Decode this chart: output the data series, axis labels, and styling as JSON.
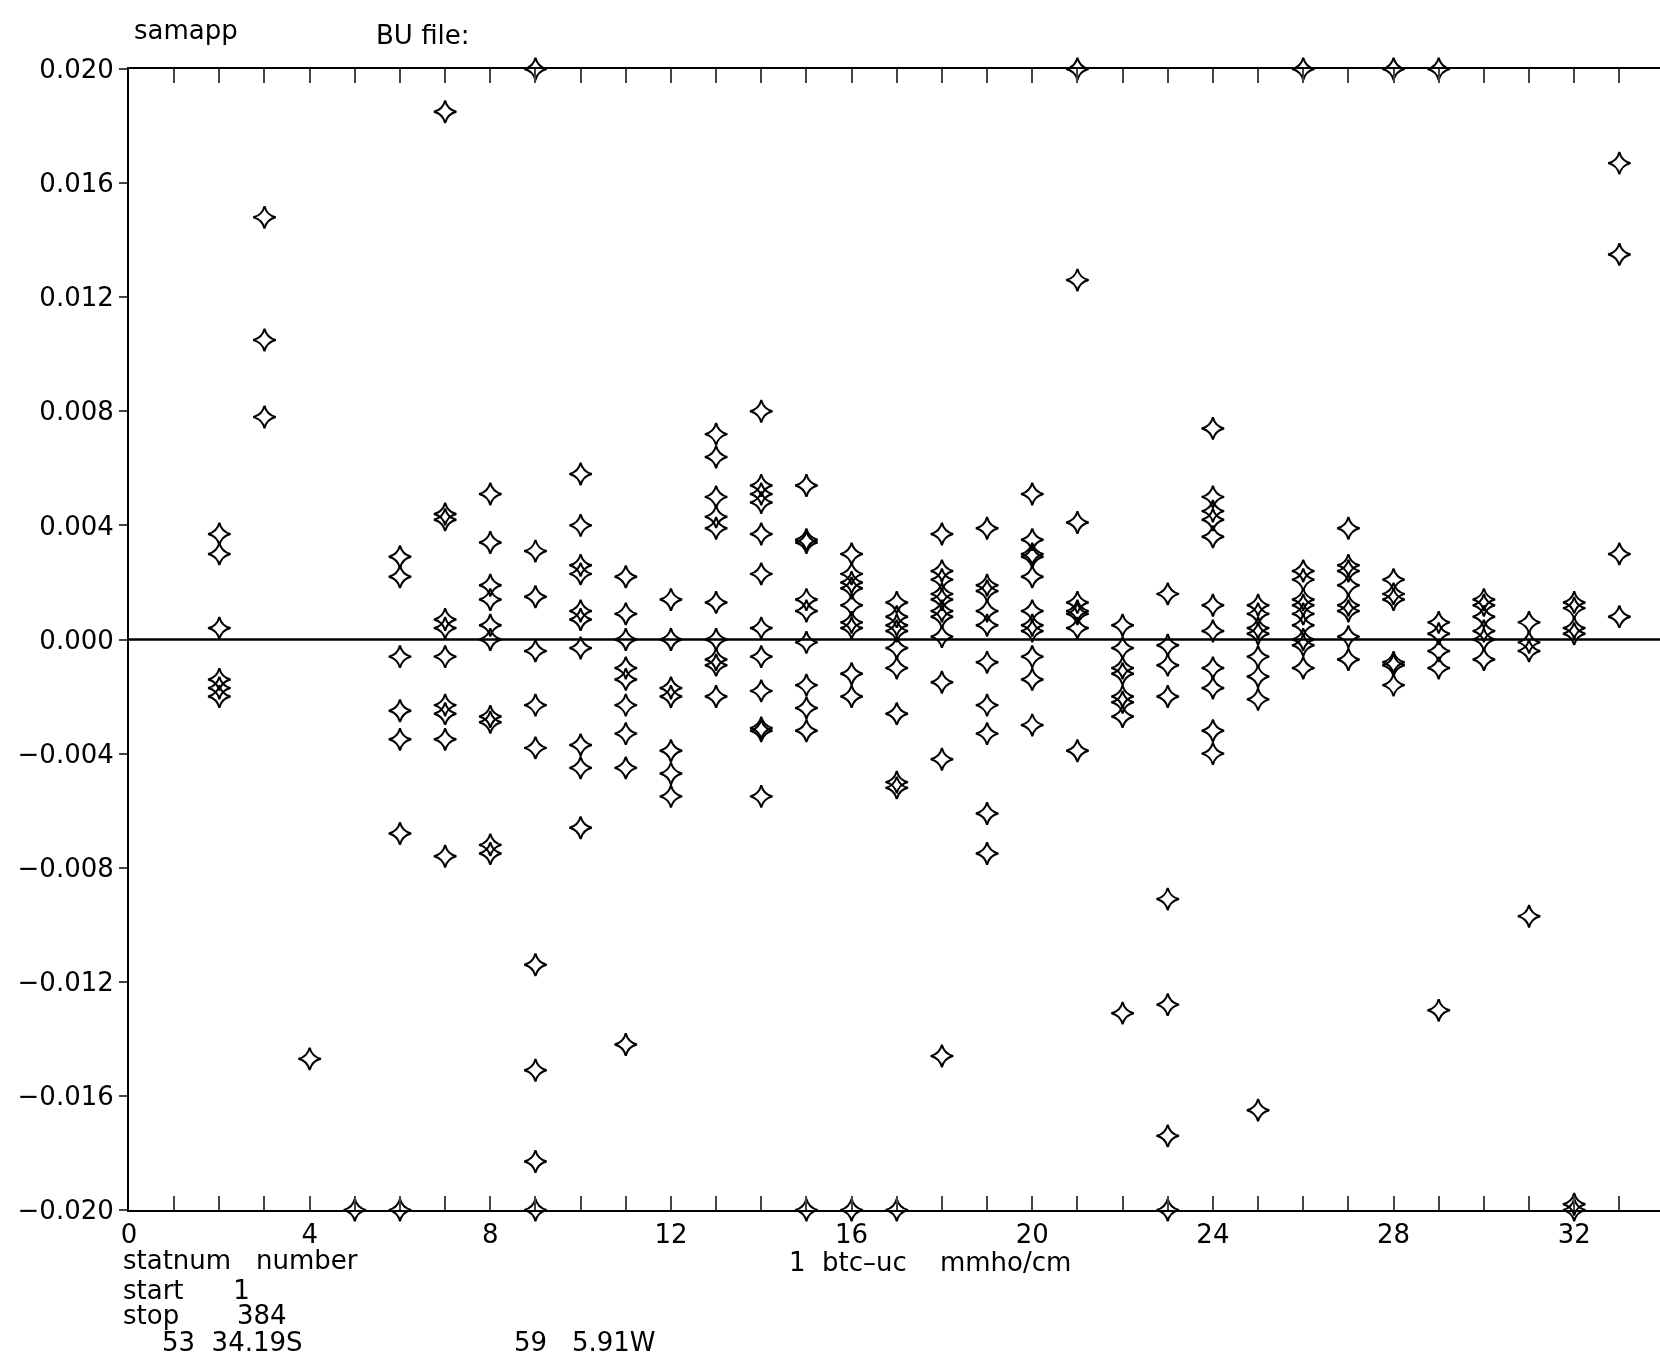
{
  "chart_data": {
    "type": "scatter",
    "xlabel": "statnum   number",
    "annotations": [
      "samapp",
      "BU file:",
      "start      1",
      "stop       384",
      "53  34.19S",
      "59   5.91W",
      "1  btc–uc    mmho/cm"
    ],
    "xlim": [
      0,
      33.9
    ],
    "ylim": [
      -0.02,
      0.02
    ],
    "xticks": [
      0,
      {
        "value": 1,
        "label": null
      },
      {
        "value": 2,
        "label": null
      },
      {
        "value": 3,
        "label": null
      },
      4,
      {
        "value": 5,
        "label": null
      },
      {
        "value": 6,
        "label": null
      },
      {
        "value": 7,
        "label": null
      },
      8,
      {
        "value": 9,
        "label": null
      },
      {
        "value": 10,
        "label": null
      },
      {
        "value": 11,
        "label": null
      },
      12,
      {
        "value": 13,
        "label": null
      },
      {
        "value": 14,
        "label": null
      },
      {
        "value": 15,
        "label": null
      },
      16,
      {
        "value": 17,
        "label": null
      },
      {
        "value": 18,
        "label": null
      },
      {
        "value": 19,
        "label": null
      },
      20,
      {
        "value": 21,
        "label": null
      },
      {
        "value": 22,
        "label": null
      },
      {
        "value": 23,
        "label": null
      },
      24,
      {
        "value": 25,
        "label": null
      },
      {
        "value": 26,
        "label": null
      },
      {
        "value": 27,
        "label": null
      },
      28,
      {
        "value": 29,
        "label": null
      },
      {
        "value": 30,
        "label": null
      },
      {
        "value": 31,
        "label": null
      },
      32,
      {
        "value": 33,
        "label": null
      }
    ],
    "yticks": [
      {
        "value": -0.02,
        "label": "−0.020"
      },
      {
        "value": -0.016,
        "label": "−0.016"
      },
      {
        "value": -0.012,
        "label": "−0.012"
      },
      {
        "value": -0.008,
        "label": "−0.008"
      },
      {
        "value": -0.004,
        "label": "−0.004"
      },
      {
        "value": 0,
        "label": "0.000"
      },
      {
        "value": 0.004,
        "label": "0.004"
      },
      {
        "value": 0.008,
        "label": "0.008"
      },
      {
        "value": 0.012,
        "label": "0.012"
      },
      {
        "value": 0.016,
        "label": "0.016"
      },
      {
        "value": 0.02,
        "label": "0.020"
      }
    ],
    "ref_lines": [
      {
        "axis": "y",
        "value": 0,
        "color": "#000000"
      }
    ],
    "grid": false,
    "marker": "star",
    "series": [
      {
        "color": "#000000",
        "x": [
          2,
          2,
          2,
          2,
          2,
          2,
          3,
          3,
          3,
          4,
          5,
          6,
          6,
          6,
          6,
          6,
          6,
          6,
          7,
          7,
          7,
          7,
          7,
          7,
          7,
          7,
          7,
          7,
          8,
          8,
          8,
          8,
          8,
          8,
          8,
          8,
          8,
          8,
          9,
          9,
          9,
          9,
          9,
          9,
          9,
          9,
          9,
          9,
          10,
          10,
          10,
          10,
          10,
          10,
          10,
          10,
          10,
          10,
          11,
          11,
          11,
          11,
          11,
          11,
          11,
          11,
          11,
          12,
          12,
          12,
          12,
          12,
          12,
          12,
          13,
          13,
          13,
          13,
          13,
          13,
          13,
          13,
          13,
          13,
          14,
          14,
          14,
          14,
          14,
          14,
          14,
          14,
          14,
          14,
          14,
          14,
          15,
          15,
          15,
          15,
          15,
          15,
          15,
          15,
          15,
          15,
          16,
          16,
          16,
          16,
          16,
          16,
          16,
          16,
          16,
          16,
          17,
          17,
          17,
          17,
          17,
          17,
          17,
          17,
          17,
          17,
          18,
          18,
          18,
          18,
          18,
          18,
          18,
          18,
          18,
          18,
          18,
          19,
          19,
          19,
          19,
          19,
          19,
          19,
          19,
          19,
          19,
          20,
          20,
          20,
          20,
          20,
          20,
          20,
          20,
          20,
          20,
          20,
          21,
          21,
          21,
          21,
          21,
          21,
          21,
          21,
          22,
          22,
          22,
          22,
          22,
          22,
          22,
          22,
          23,
          23,
          23,
          23,
          23,
          23,
          23,
          23,
          24,
          24,
          24,
          24,
          24,
          24,
          24,
          24,
          24,
          24,
          24,
          25,
          25,
          25,
          25,
          25,
          25,
          25,
          25,
          26,
          26,
          26,
          26,
          26,
          26,
          26,
          26,
          26,
          26,
          27,
          27,
          27,
          27,
          27,
          27,
          27,
          27,
          28,
          28,
          28,
          28,
          28,
          28,
          28,
          29,
          29,
          29,
          29,
          29,
          29,
          30,
          30,
          30,
          30,
          30,
          30,
          31,
          31,
          31,
          31,
          32,
          32,
          32,
          32,
          32,
          32,
          33,
          33,
          33,
          33
        ],
        "values": [
          0.0037,
          0.003,
          0.0004,
          -0.0014,
          -0.0017,
          -0.002,
          0.0148,
          0.0105,
          0.0078,
          -0.0147,
          -0.02,
          0.0029,
          0.0022,
          -0.0006,
          -0.0025,
          -0.0035,
          -0.0068,
          -0.02,
          0.0185,
          0.0044,
          0.0042,
          0.0007,
          0.0004,
          -0.0006,
          -0.0023,
          -0.0026,
          -0.0035,
          -0.0076,
          0.0051,
          0.0034,
          0.0019,
          0.0014,
          0.0005,
          0.0,
          -0.0027,
          -0.0029,
          -0.0072,
          -0.0075,
          0.02,
          0.0031,
          0.0015,
          -0.0004,
          -0.0023,
          -0.0038,
          -0.0114,
          -0.0151,
          -0.0183,
          -0.02,
          0.0058,
          0.004,
          0.0026,
          0.0023,
          0.001,
          0.0007,
          -0.0003,
          -0.0037,
          -0.0045,
          -0.0066,
          0.0022,
          0.0009,
          0.0,
          -0.001,
          -0.0014,
          -0.0023,
          -0.0033,
          -0.0045,
          -0.0142,
          0.0014,
          0.0,
          -0.0017,
          -0.002,
          -0.0039,
          -0.0047,
          -0.0055,
          0.0072,
          0.0064,
          0.005,
          0.0043,
          0.0039,
          0.0013,
          0.0,
          -0.0007,
          -0.0009,
          -0.002,
          0.008,
          0.0054,
          0.0051,
          0.0048,
          0.0037,
          0.0023,
          0.0004,
          -0.0006,
          -0.0018,
          -0.0031,
          -0.0032,
          -0.0055,
          0.0054,
          0.0035,
          0.0034,
          0.0014,
          0.001,
          -0.0001,
          -0.0016,
          -0.0024,
          -0.0032,
          -0.02,
          0.003,
          0.0023,
          0.002,
          0.0018,
          0.0012,
          0.0006,
          0.0004,
          -0.0012,
          -0.002,
          -0.02,
          0.0013,
          0.0008,
          0.0005,
          0.0003,
          -0.0003,
          -0.001,
          -0.0026,
          -0.005,
          -0.0052,
          -0.02,
          0.0037,
          0.0024,
          0.0021,
          0.0016,
          0.0014,
          0.001,
          0.0008,
          0.0001,
          -0.0015,
          -0.0042,
          -0.0146,
          0.0039,
          0.0019,
          0.0017,
          0.001,
          0.0005,
          -0.0008,
          -0.0023,
          -0.0033,
          -0.0061,
          -0.0075,
          0.0051,
          0.0035,
          0.003,
          0.0029,
          0.0022,
          0.001,
          0.0005,
          0.0003,
          -0.0006,
          -0.0014,
          -0.003,
          0.02,
          0.0126,
          0.0041,
          0.0013,
          0.001,
          0.0009,
          0.0004,
          -0.0039,
          0.0005,
          -0.0003,
          -0.001,
          -0.0012,
          -0.002,
          -0.0022,
          -0.0027,
          -0.0131,
          0.0016,
          -0.0002,
          -0.0009,
          -0.002,
          -0.0091,
          -0.0128,
          -0.0174,
          -0.02,
          0.0074,
          0.005,
          0.0045,
          0.0042,
          0.0036,
          0.0012,
          0.0003,
          -0.001,
          -0.0017,
          -0.0032,
          -0.004,
          0.0012,
          0.0009,
          0.0004,
          0.0002,
          -0.0006,
          -0.0013,
          -0.0021,
          -0.0165,
          0.02,
          0.0024,
          0.0021,
          0.0014,
          0.0012,
          0.0009,
          0.0005,
          0.0,
          -0.0002,
          -0.001,
          0.0039,
          0.0026,
          0.0024,
          0.0019,
          0.0012,
          0.001,
          0.0001,
          -0.0007,
          0.02,
          0.0021,
          0.0016,
          0.0014,
          -0.0008,
          -0.0009,
          -0.0016,
          0.02,
          0.0006,
          0.0002,
          -0.0004,
          -0.001,
          -0.013,
          0.0014,
          0.0012,
          0.0008,
          0.0003,
          0.0,
          -0.0007,
          0.0006,
          -0.0001,
          -0.0004,
          -0.0097,
          0.0013,
          0.0011,
          0.0004,
          0.0002,
          -0.0198,
          -0.02,
          0.0167,
          0.0135,
          0.003,
          0.0008
        ]
      }
    ]
  }
}
